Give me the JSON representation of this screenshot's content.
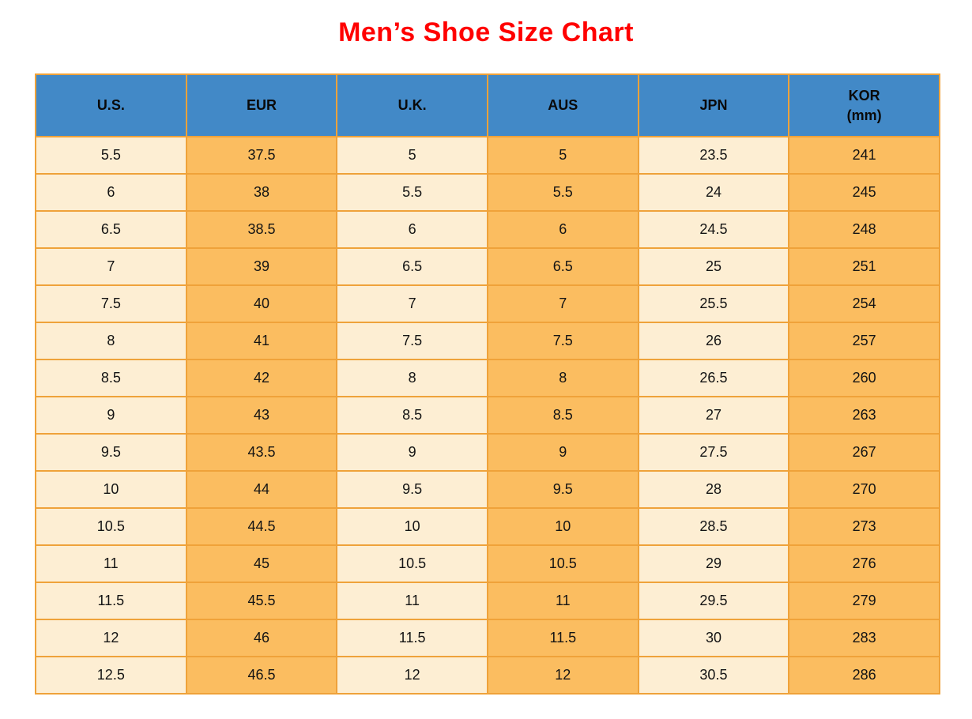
{
  "title": "Men’s Shoe Size Chart",
  "colors": {
    "title_red": "#FF0000",
    "header_blue": "#4289C7",
    "column_cream": "#FDEED3",
    "column_orange": "#FBBD60",
    "grid_border_orange": "#EFA23A",
    "text": "#141414"
  },
  "chart_data": {
    "type": "table",
    "title": "Men’s Shoe Size Chart",
    "columns": [
      {
        "label": "U.S.",
        "sublabel": ""
      },
      {
        "label": "EUR",
        "sublabel": ""
      },
      {
        "label": "U.K.",
        "sublabel": ""
      },
      {
        "label": "AUS",
        "sublabel": ""
      },
      {
        "label": "JPN",
        "sublabel": ""
      },
      {
        "label": "KOR",
        "sublabel": "(mm)"
      }
    ],
    "rows": [
      [
        "5.5",
        "37.5",
        "5",
        "5",
        "23.5",
        "241"
      ],
      [
        "6",
        "38",
        "5.5",
        "5.5",
        "24",
        "245"
      ],
      [
        "6.5",
        "38.5",
        "6",
        "6",
        "24.5",
        "248"
      ],
      [
        "7",
        "39",
        "6.5",
        "6.5",
        "25",
        "251"
      ],
      [
        "7.5",
        "40",
        "7",
        "7",
        "25.5",
        "254"
      ],
      [
        "8",
        "41",
        "7.5",
        "7.5",
        "26",
        "257"
      ],
      [
        "8.5",
        "42",
        "8",
        "8",
        "26.5",
        "260"
      ],
      [
        "9",
        "43",
        "8.5",
        "8.5",
        "27",
        "263"
      ],
      [
        "9.5",
        "43.5",
        "9",
        "9",
        "27.5",
        "267"
      ],
      [
        "10",
        "44",
        "9.5",
        "9.5",
        "28",
        "270"
      ],
      [
        "10.5",
        "44.5",
        "10",
        "10",
        "28.5",
        "273"
      ],
      [
        "11",
        "45",
        "10.5",
        "10.5",
        "29",
        "276"
      ],
      [
        "11.5",
        "45.5",
        "11",
        "11",
        "29.5",
        "279"
      ],
      [
        "12",
        "46",
        "11.5",
        "11.5",
        "30",
        "283"
      ],
      [
        "12.5",
        "46.5",
        "12",
        "12",
        "30.5",
        "286"
      ]
    ]
  }
}
